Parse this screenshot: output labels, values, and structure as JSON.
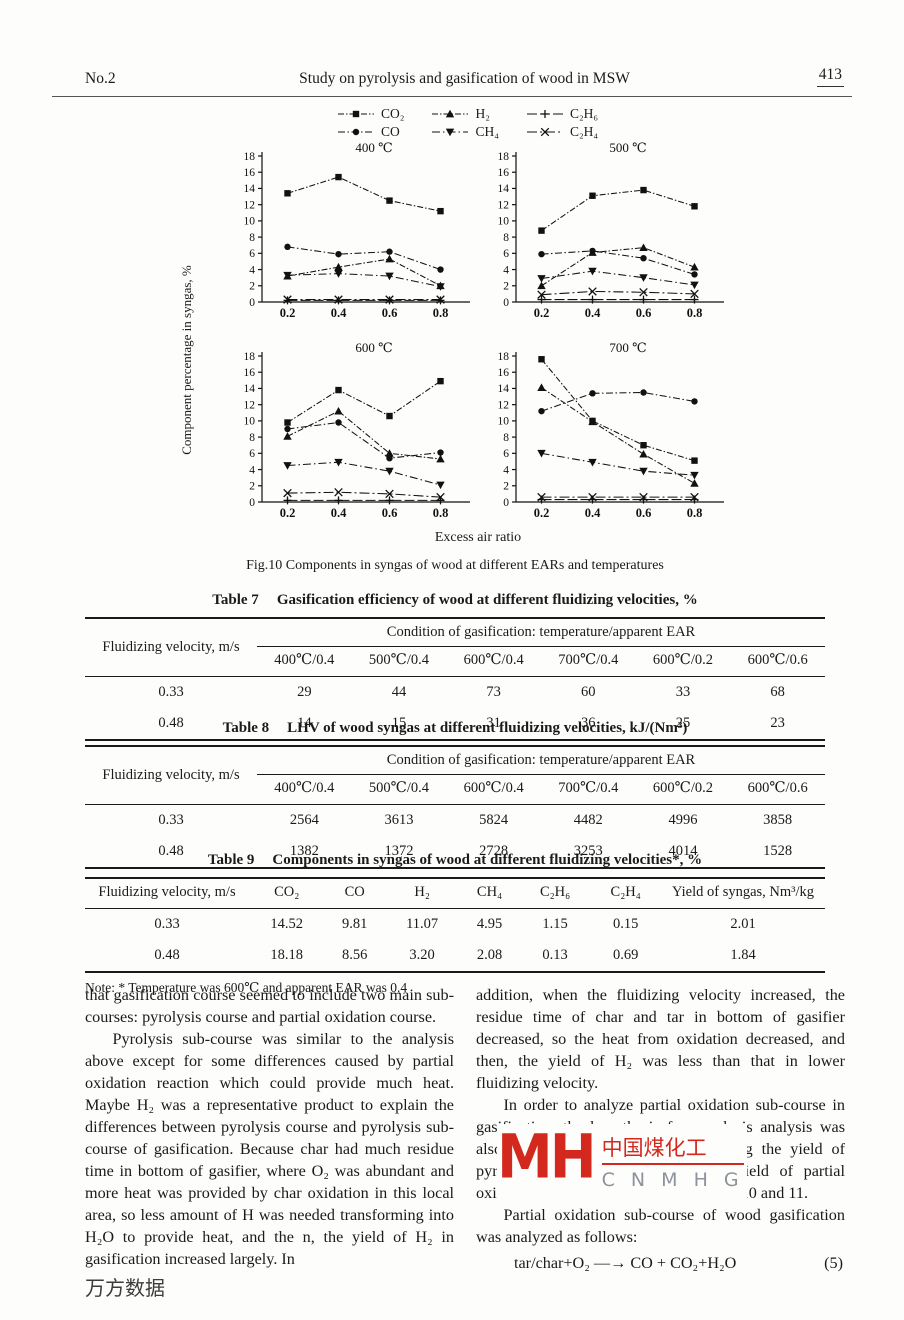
{
  "header": {
    "issue": "No.2",
    "title": "Study on pyrolysis and gasification of wood in MSW",
    "page_number": "413"
  },
  "chart_data": {
    "type": "line",
    "x": [
      0.2,
      0.4,
      0.6,
      0.8
    ],
    "xlabel": "Excess air ratio",
    "ylabel": "Component percentage in syngas, %",
    "ylim": [
      0,
      18
    ],
    "ytick_step": 2,
    "grid": false,
    "legend_position": "top-center",
    "caption": "Fig.10    Components in syngas of wood at different EARs and temperatures",
    "legend": [
      {
        "name": "CO₂",
        "marker": "square"
      },
      {
        "name": "CO",
        "marker": "circle"
      },
      {
        "name": "H₂",
        "marker": "triangle-up"
      },
      {
        "name": "CH₄",
        "marker": "triangle-down"
      },
      {
        "name": "C₂H₆",
        "marker": "plus"
      },
      {
        "name": "C₂H₄",
        "marker": "x"
      }
    ],
    "subplots": [
      {
        "title": "400 ℃",
        "series": [
          {
            "name": "CO₂",
            "values": [
              13.4,
              15.4,
              12.5,
              11.2
            ]
          },
          {
            "name": "CO",
            "values": [
              6.8,
              5.9,
              6.2,
              4.0
            ]
          },
          {
            "name": "H₂",
            "values": [
              3.2,
              4.3,
              5.3,
              2.0
            ]
          },
          {
            "name": "CH₄",
            "values": [
              3.3,
              3.5,
              3.2,
              1.9
            ]
          },
          {
            "name": "C₂H₆",
            "values": [
              0.2,
              0.2,
              0.2,
              0.2
            ]
          },
          {
            "name": "C₂H₄",
            "values": [
              0.3,
              0.3,
              0.3,
              0.3
            ]
          }
        ]
      },
      {
        "title": "500 ℃",
        "series": [
          {
            "name": "CO₂",
            "values": [
              8.8,
              13.1,
              13.8,
              11.8
            ]
          },
          {
            "name": "CO",
            "values": [
              5.9,
              6.3,
              5.4,
              3.4
            ]
          },
          {
            "name": "H₂",
            "values": [
              2.0,
              6.1,
              6.7,
              4.3
            ]
          },
          {
            "name": "CH₄",
            "values": [
              2.9,
              3.8,
              3.0,
              2.1
            ]
          },
          {
            "name": "C₂H₆",
            "values": [
              0.3,
              0.3,
              0.3,
              0.3
            ]
          },
          {
            "name": "C₂H₄",
            "values": [
              0.9,
              1.3,
              1.2,
              1.0
            ]
          }
        ]
      },
      {
        "title": "600 ℃",
        "series": [
          {
            "name": "CO₂",
            "values": [
              9.8,
              13.8,
              10.6,
              14.9
            ]
          },
          {
            "name": "CO",
            "values": [
              9.0,
              9.8,
              5.4,
              6.1
            ]
          },
          {
            "name": "H₂",
            "values": [
              8.1,
              11.2,
              6.0,
              5.3
            ]
          },
          {
            "name": "CH₄",
            "values": [
              4.5,
              4.9,
              3.8,
              2.1
            ]
          },
          {
            "name": "C₂H₆",
            "values": [
              0.2,
              0.2,
              0.2,
              0.2
            ]
          },
          {
            "name": "C₂H₄",
            "values": [
              1.1,
              1.2,
              1.0,
              0.6
            ]
          }
        ]
      },
      {
        "title": "700 ℃",
        "series": [
          {
            "name": "CO₂",
            "values": [
              17.6,
              10.0,
              7.0,
              5.1
            ]
          },
          {
            "name": "CO",
            "values": [
              11.2,
              13.4,
              13.5,
              12.4
            ]
          },
          {
            "name": "H₂",
            "values": [
              14.1,
              9.9,
              5.9,
              2.3
            ]
          },
          {
            "name": "CH₄",
            "values": [
              6.0,
              4.9,
              3.8,
              3.3
            ]
          },
          {
            "name": "C₂H₆",
            "values": [
              0.3,
              0.3,
              0.3,
              0.3
            ]
          },
          {
            "name": "C₂H₄",
            "values": [
              0.6,
              0.6,
              0.6,
              0.6
            ]
          }
        ]
      }
    ]
  },
  "table7": {
    "title_label": "Table 7",
    "title": "Gasification efficiency of wood at different fluidizing velocities, %",
    "row_header": "Fluidizing velocity, m/s",
    "span_header": "Condition of gasification: temperature/apparent EAR",
    "columns": [
      "400℃/0.4",
      "500℃/0.4",
      "600℃/0.4",
      "700℃/0.4",
      "600℃/0.2",
      "600℃/0.6"
    ],
    "rows": [
      {
        "label": "0.33",
        "values": [
          "29",
          "44",
          "73",
          "60",
          "33",
          "68"
        ]
      },
      {
        "label": "0.48",
        "values": [
          "14",
          "15",
          "31",
          "36",
          "25",
          "23"
        ]
      }
    ]
  },
  "table8": {
    "title_label": "Table 8",
    "title": "LHV of wood syngas at different fluidizing velocities, kJ/(Nm³)",
    "row_header": "Fluidizing velocity, m/s",
    "span_header": "Condition of gasification: temperature/apparent EAR",
    "columns": [
      "400℃/0.4",
      "500℃/0.4",
      "600℃/0.4",
      "700℃/0.4",
      "600℃/0.2",
      "600℃/0.6"
    ],
    "rows": [
      {
        "label": "0.33",
        "values": [
          "2564",
          "3613",
          "5824",
          "4482",
          "4996",
          "3858"
        ]
      },
      {
        "label": "0.48",
        "values": [
          "1382",
          "1372",
          "2728",
          "3253",
          "4014",
          "1528"
        ]
      }
    ]
  },
  "table9": {
    "title_label": "Table 9",
    "title": "Components in syngas of wood at different fluidizing velocities*, %",
    "columns": [
      "Fluidizing velocity,  m/s",
      "CO₂",
      "CO",
      "H₂",
      "CH₄",
      "C₂H₆",
      "C₂H₄",
      "Yield of syngas, Nm³/kg"
    ],
    "rows": [
      [
        "0.33",
        "14.52",
        "9.81",
        "11.07",
        "4.95",
        "1.15",
        "0.15",
        "2.01"
      ],
      [
        "0.48",
        "18.18",
        "8.56",
        "3.20",
        "2.08",
        "0.13",
        "0.69",
        "1.84"
      ]
    ],
    "note": "Note: * Temperature was 600℃ and apparent EAR was 0.4"
  },
  "body": {
    "left": {
      "p1": "that gasification course seemed to include two main sub-courses: pyrolysis course and partial oxidation course.",
      "p2": "Pyrolysis sub-course was similar to the analysis above except for some differences caused by partial oxidation reaction which could provide much heat. Maybe H₂ was a representative product to explain the differences between pyrolysis course and pyrolysis sub-course of gasification. Because char had much residue time in bottom of gasifier, where O₂ was abundant and more heat was provided by char oxidation in this local area, so less amount of H was needed transforming into H₂O to provide heat, and the n, the yield of H₂ in gasification increased largely. In"
    },
    "right": {
      "p1": "addition, when the fluidizing velocity increased, the residue time of char and tar in bottom of gasifier decreased, so the heat from oxidation decreased, and then, the yield of H₂ was less than that in lower fluidizing velocity.",
      "p2": "In order to analyze partial oxidation sub-course in gasification, the hypothesis for pyrolysis analysis was also applied in this analysis. Excluding the yield of pyrolysis sub-course, the additional yield of partial oxidation sub-course are listed in Tables 10 and 11.",
      "p3": "Partial oxidation sub-course of wood gasification was analyzed as follows:",
      "equation": "tar/char+O₂ —→ CO + CO₂+H₂O",
      "equation_number": "(5)"
    }
  },
  "watermarks": {
    "logo_text": "MH",
    "cn_name": "中国煤化工",
    "cn_sub": "C N M H G",
    "wanfang": "万方数据",
    "red": "#d3281e",
    "gray": "#8d939c"
  }
}
